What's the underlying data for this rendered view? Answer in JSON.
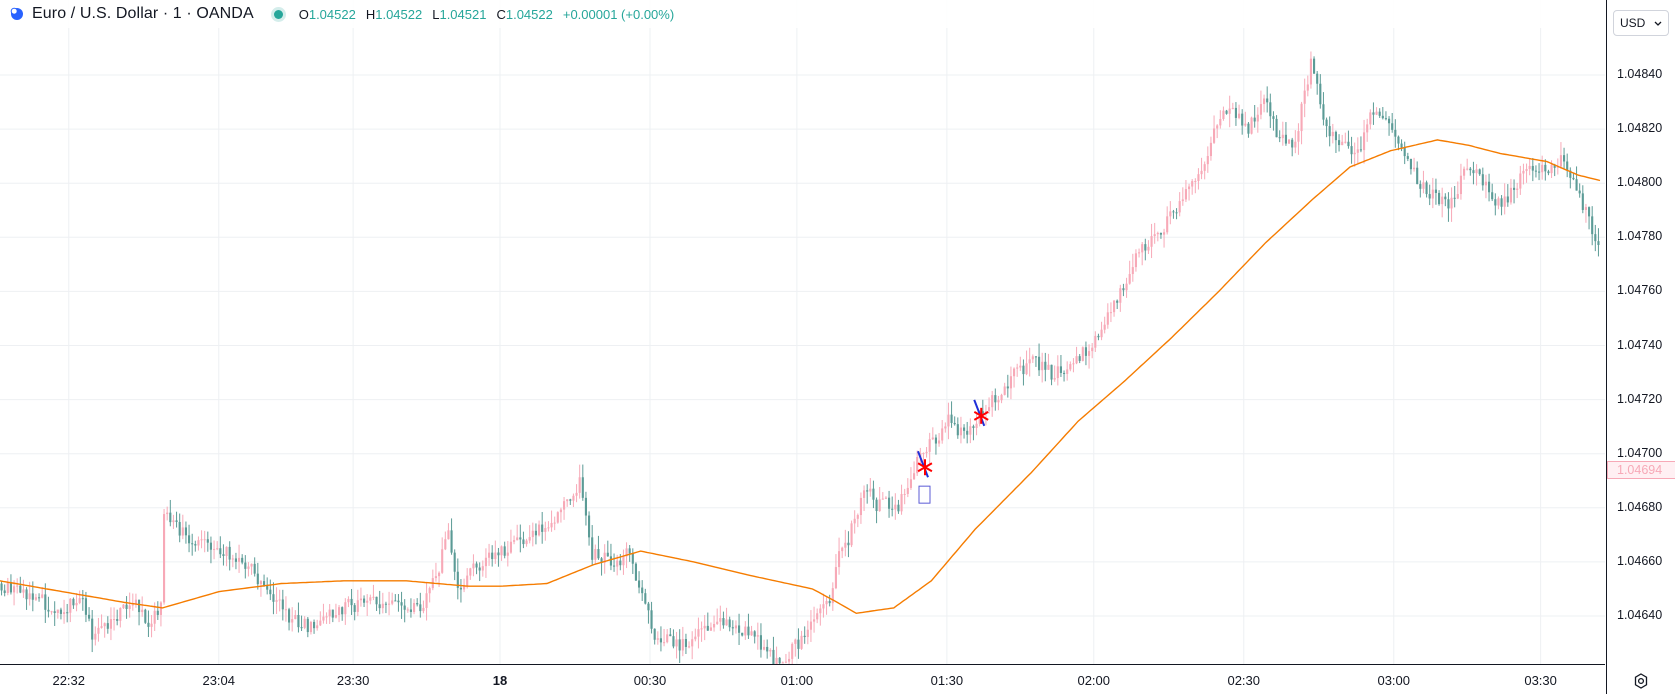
{
  "header": {
    "title": "Euro / U.S. Dollar · 1 · OANDA",
    "ohlc": {
      "o_label": "O",
      "o": "1.04522",
      "h_label": "H",
      "h": "1.04522",
      "l_label": "L",
      "l": "1.04521",
      "c_label": "C",
      "c": "1.04522",
      "change": "+0.00001 (+0.00%)"
    },
    "status_color": "#26a69a"
  },
  "currency_selector": {
    "label": "USD",
    "icon": "chevron-down-icon"
  },
  "settings": {
    "icon": "gear-icon"
  },
  "colors": {
    "up": "#f7a9b7",
    "down": "#5b9b96",
    "ma": "#f57c00",
    "marker_red": "#ff0000",
    "marker_blue": "#1f2fd8",
    "grid": "#eef0f3"
  },
  "chart_data": {
    "type": "candlestick",
    "symbol": "Euro / U.S. Dollar",
    "interval": "1",
    "source": "OANDA",
    "ylim": [
      1.0462,
      1.0486
    ],
    "y_ticks": [
      "1.04840",
      "1.04820",
      "1.04800",
      "1.04780",
      "1.04760",
      "1.04740",
      "1.04720",
      "1.04700",
      "1.04680",
      "1.04660",
      "1.04640"
    ],
    "x_tick_labels": [
      "22:32",
      "23:04",
      "23:30",
      "18",
      "00:30",
      "01:00",
      "01:30",
      "02:00",
      "02:30",
      "03:00",
      "03:30"
    ],
    "current_price": "1.04694",
    "grid": true,
    "close_path": [
      [
        0,
        1.04652
      ],
      [
        10,
        1.04648
      ],
      [
        20,
        1.04642
      ],
      [
        27,
        1.04646
      ],
      [
        30,
        1.04632
      ],
      [
        37,
        1.0464
      ],
      [
        44,
        1.04644
      ],
      [
        48,
        1.04636
      ],
      [
        52,
        1.04645
      ],
      [
        53,
        1.04677
      ],
      [
        60,
        1.04669
      ],
      [
        70,
        1.04665
      ],
      [
        80,
        1.04658
      ],
      [
        86,
        1.04651
      ],
      [
        93,
        1.0464
      ],
      [
        100,
        1.04636
      ],
      [
        110,
        1.04643
      ],
      [
        120,
        1.04646
      ],
      [
        135,
        1.04643
      ],
      [
        141,
        1.04658
      ],
      [
        144,
        1.04671
      ],
      [
        147,
        1.04649
      ],
      [
        152,
        1.04658
      ],
      [
        160,
        1.04663
      ],
      [
        170,
        1.0467
      ],
      [
        180,
        1.04678
      ],
      [
        186,
        1.0469
      ],
      [
        190,
        1.04663
      ],
      [
        198,
        1.0466
      ],
      [
        201,
        1.04664
      ],
      [
        205,
        1.0465
      ],
      [
        210,
        1.04633
      ],
      [
        218,
        1.04628
      ],
      [
        225,
        1.04635
      ],
      [
        232,
        1.04638
      ],
      [
        240,
        1.04634
      ],
      [
        245,
        1.04628
      ],
      [
        250,
        1.04622
      ],
      [
        257,
        1.04632
      ],
      [
        262,
        1.0464
      ],
      [
        266,
        1.04644
      ],
      [
        268,
        1.0466
      ],
      [
        272,
        1.04668
      ],
      [
        275,
        1.0468
      ],
      [
        278,
        1.04688
      ],
      [
        280,
        1.04681
      ],
      [
        288,
        1.04681
      ],
      [
        291,
        1.04686
      ],
      [
        294,
        1.04697
      ],
      [
        298,
        1.04703
      ],
      [
        304,
        1.04712
      ],
      [
        310,
        1.04706
      ],
      [
        315,
        1.04716
      ],
      [
        320,
        1.04722
      ],
      [
        325,
        1.0473
      ],
      [
        332,
        1.04734
      ],
      [
        338,
        1.04729
      ],
      [
        343,
        1.04734
      ],
      [
        350,
        1.0474
      ],
      [
        356,
        1.04754
      ],
      [
        362,
        1.04766
      ],
      [
        365,
        1.04774
      ],
      [
        372,
        1.04782
      ],
      [
        380,
        1.04796
      ],
      [
        385,
        1.04804
      ],
      [
        390,
        1.04823
      ],
      [
        395,
        1.04826
      ],
      [
        400,
        1.0482
      ],
      [
        405,
        1.04833
      ],
      [
        410,
        1.04815
      ],
      [
        415,
        1.04816
      ],
      [
        420,
        1.04845
      ],
      [
        425,
        1.0482
      ],
      [
        430,
        1.04814
      ],
      [
        435,
        1.0481
      ],
      [
        440,
        1.04828
      ],
      [
        445,
        1.04823
      ],
      [
        450,
        1.0481
      ],
      [
        455,
        1.048
      ],
      [
        460,
        1.04795
      ],
      [
        465,
        1.04792
      ],
      [
        470,
        1.04807
      ],
      [
        475,
        1.048
      ],
      [
        480,
        1.04792
      ],
      [
        485,
        1.04798
      ],
      [
        490,
        1.04806
      ],
      [
        495,
        1.04804
      ],
      [
        500,
        1.0481
      ],
      [
        505,
        1.04798
      ],
      [
        508,
        1.0479
      ],
      [
        512,
        1.04776
      ]
    ],
    "moving_average": [
      [
        0,
        1.04653
      ],
      [
        20,
        1.04649
      ],
      [
        40,
        1.04645
      ],
      [
        52,
        1.04643
      ],
      [
        70,
        1.04649
      ],
      [
        90,
        1.04652
      ],
      [
        110,
        1.04653
      ],
      [
        130,
        1.04653
      ],
      [
        150,
        1.04651
      ],
      [
        160,
        1.04651
      ],
      [
        175,
        1.04652
      ],
      [
        190,
        1.04659
      ],
      [
        205,
        1.04664
      ],
      [
        222,
        1.0466
      ],
      [
        240,
        1.04655
      ],
      [
        260,
        1.0465
      ],
      [
        268,
        1.04645
      ],
      [
        274,
        1.04641
      ],
      [
        286,
        1.04643
      ],
      [
        298,
        1.04653
      ],
      [
        312,
        1.04672
      ],
      [
        330,
        1.04693
      ],
      [
        345,
        1.04712
      ],
      [
        360,
        1.04727
      ],
      [
        375,
        1.04743
      ],
      [
        390,
        1.0476
      ],
      [
        405,
        1.04778
      ],
      [
        420,
        1.04794
      ],
      [
        432,
        1.04806
      ],
      [
        445,
        1.04812
      ],
      [
        460,
        1.04816
      ],
      [
        470,
        1.04814
      ],
      [
        480,
        1.04811
      ],
      [
        495,
        1.04808
      ],
      [
        505,
        1.04803
      ],
      [
        512,
        1.04801
      ]
    ],
    "markers": [
      {
        "name": "asterisk-marker-1",
        "bar": 296,
        "price": 1.04695,
        "color": "#ff0000"
      },
      {
        "name": "asterisk-marker-2",
        "bar": 314,
        "price": 1.04714,
        "color": "#ff0000"
      }
    ],
    "tick_bars": [
      22,
      70,
      113,
      160,
      208,
      255,
      303,
      350,
      398,
      446,
      493
    ],
    "bar_count": 512
  }
}
